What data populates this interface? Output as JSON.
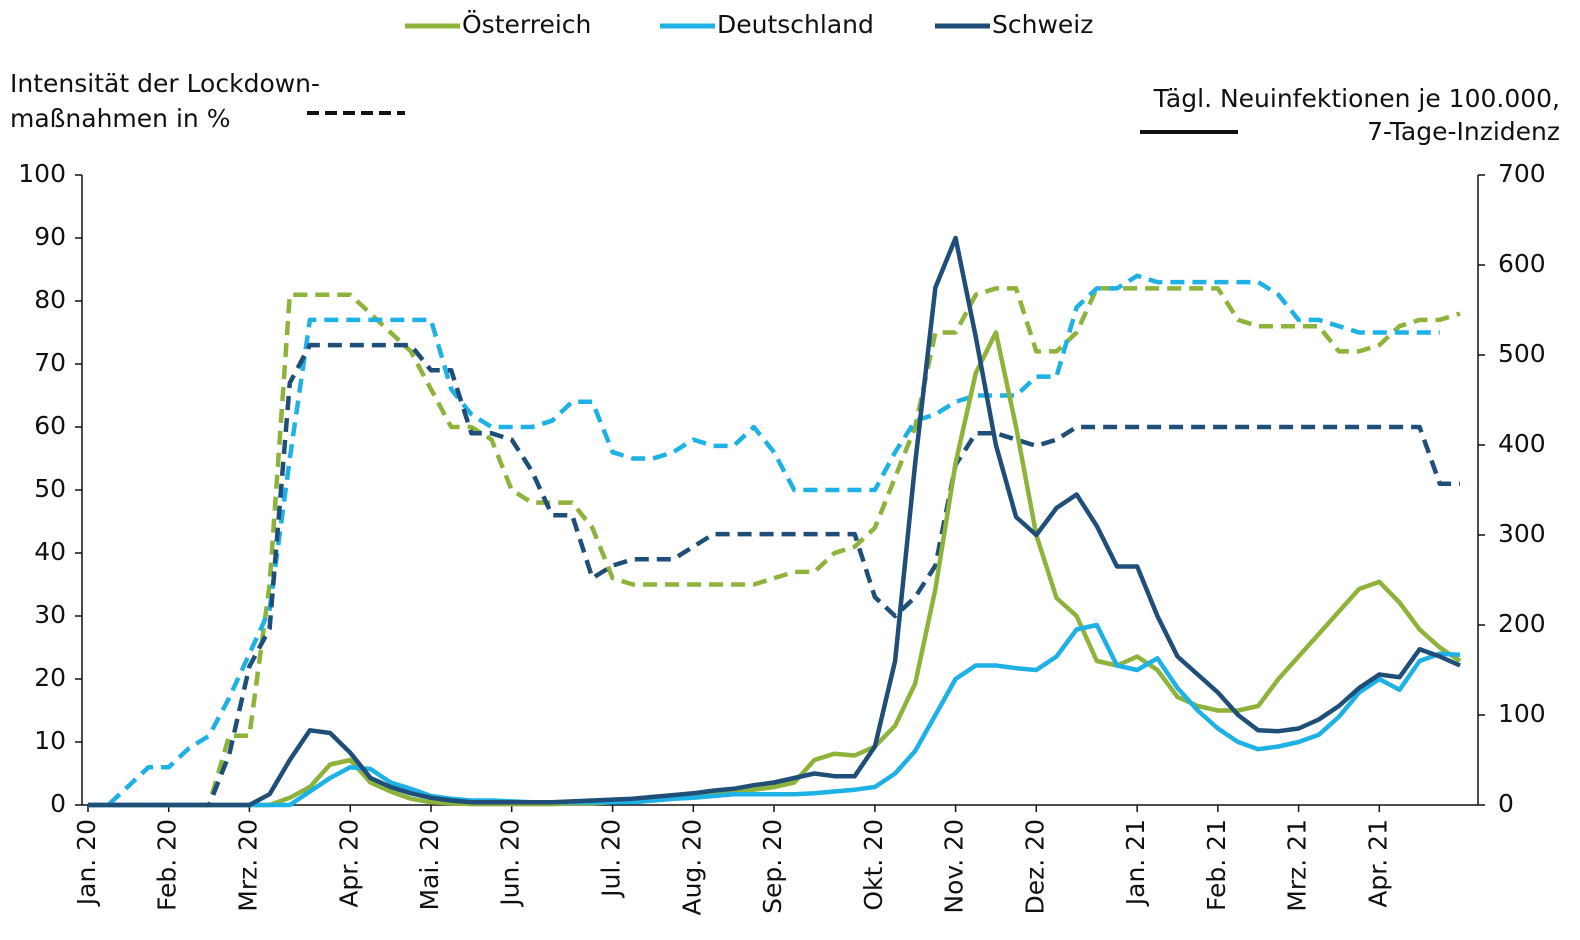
{
  "chart_data": {
    "type": "line",
    "y_label": [
      "Intensität der Lockdown-",
      "maßnahmen in %"
    ],
    "y2_label": [
      "Tägl. Neuinfektionen je 100.000,",
      "7-Tage-Inzidenz"
    ],
    "categories": [
      "Jan. 20",
      null,
      null,
      null,
      "Feb. 20",
      null,
      null,
      null,
      "Mrz. 20",
      null,
      null,
      null,
      null,
      "Apr. 20",
      null,
      null,
      null,
      "Mai. 20",
      null,
      null,
      null,
      "Jun. 20",
      null,
      null,
      null,
      null,
      "Jul. 20",
      null,
      null,
      null,
      "Aug. 20",
      null,
      null,
      null,
      "Sep. 20",
      null,
      null,
      null,
      null,
      "Okt. 20",
      null,
      null,
      null,
      "Nov. 20",
      null,
      null,
      null,
      "Dez. 20",
      null,
      null,
      null,
      null,
      "Jan. 21",
      null,
      null,
      null,
      "Feb. 21",
      null,
      null,
      null,
      "Mrz. 21",
      null,
      null,
      null,
      "Apr. 21",
      null,
      null,
      null,
      null
    ],
    "ylim": [
      0,
      100
    ],
    "yticks": [
      0,
      10,
      20,
      30,
      40,
      50,
      60,
      70,
      80,
      90,
      100
    ],
    "y2lim": [
      0,
      700
    ],
    "y2ticks": [
      0,
      100,
      200,
      300,
      400,
      500,
      600,
      700
    ],
    "series": [
      {
        "name": "Österreich",
        "color": "#8db33a",
        "axis": "y2",
        "values": [
          0,
          0,
          0,
          0,
          0,
          0,
          0,
          0,
          0,
          0,
          8,
          20,
          45,
          50,
          25,
          15,
          7,
          3,
          2,
          1,
          1,
          1,
          1,
          1,
          2,
          2,
          3,
          4,
          5,
          7,
          9,
          11,
          14,
          17,
          20,
          25,
          50,
          57,
          55,
          65,
          88,
          135,
          240,
          380,
          480,
          525,
          420,
          300,
          230,
          210,
          160,
          155,
          165,
          150,
          120,
          110,
          105,
          105,
          110,
          140,
          165,
          190,
          215,
          240,
          248,
          225,
          195,
          175,
          160
        ],
        "lockdown_values": [
          0,
          0,
          0,
          0,
          0,
          0,
          0,
          11,
          11,
          35,
          81,
          81,
          81,
          81,
          78,
          75,
          72,
          66,
          60,
          60,
          58,
          50,
          48,
          48,
          48,
          44,
          36,
          35,
          35,
          35,
          35,
          35,
          35,
          35,
          36,
          37,
          37,
          40,
          41,
          44,
          52,
          60,
          75,
          75,
          81,
          82,
          82,
          72,
          72,
          75,
          82,
          82,
          82,
          82,
          82,
          82,
          82,
          77,
          76,
          76,
          76,
          76,
          72,
          72,
          73,
          76,
          77,
          77,
          78
        ]
      },
      {
        "name": "Deutschland",
        "color": "#1eb1e6",
        "axis": "y2",
        "values": [
          0,
          0,
          0,
          0,
          0,
          0,
          0,
          0,
          0,
          0,
          0,
          15,
          30,
          42,
          40,
          25,
          18,
          10,
          7,
          5,
          5,
          4,
          3,
          3,
          3,
          3,
          3,
          3,
          5,
          7,
          8,
          10,
          12,
          12,
          12,
          12,
          13,
          15,
          17,
          20,
          35,
          60,
          100,
          140,
          155,
          155,
          152,
          150,
          165,
          195,
          200,
          155,
          150,
          163,
          130,
          105,
          85,
          70,
          62,
          65,
          70,
          78,
          98,
          125,
          140,
          128,
          160,
          168,
          167
        ],
        "lockdown_values": [
          0,
          0,
          3,
          6,
          6,
          9,
          11,
          17,
          24,
          31,
          55,
          77,
          77,
          77,
          77,
          77,
          77,
          77,
          66,
          62,
          60,
          60,
          60,
          61,
          64,
          64,
          56,
          55,
          55,
          56,
          58,
          57,
          57,
          60,
          56,
          50,
          50,
          50,
          50,
          50,
          56,
          61,
          62,
          64,
          65,
          65,
          65,
          68,
          68,
          79,
          82,
          82,
          84,
          83,
          83,
          83,
          83,
          83,
          83,
          81,
          77,
          77,
          76,
          75,
          75,
          75,
          75,
          75,
          null
        ]
      },
      {
        "name": "Schweiz",
        "color": "#1f4e79",
        "axis": "y2",
        "values": [
          0,
          0,
          0,
          0,
          0,
          0,
          0,
          0,
          0,
          12,
          50,
          83,
          80,
          58,
          30,
          20,
          13,
          8,
          5,
          3,
          3,
          3,
          3,
          3,
          4,
          5,
          6,
          7,
          9,
          11,
          13,
          16,
          18,
          22,
          25,
          30,
          35,
          32,
          32,
          65,
          160,
          380,
          575,
          630,
          520,
          400,
          320,
          300,
          330,
          345,
          310,
          265,
          265,
          210,
          165,
          145,
          125,
          100,
          83,
          82,
          85,
          95,
          110,
          130,
          145,
          142,
          173,
          165,
          155
        ],
        "lockdown_values": [
          0,
          0,
          0,
          0,
          0,
          0,
          0,
          8,
          22,
          28,
          67,
          73,
          73,
          73,
          73,
          73,
          73,
          69,
          69,
          59,
          59,
          58,
          53,
          46,
          46,
          36,
          38,
          39,
          39,
          39,
          41,
          43,
          43,
          43,
          43,
          43,
          43,
          43,
          43,
          33,
          30,
          33,
          38,
          54,
          59,
          59,
          58,
          57,
          58,
          60,
          60,
          60,
          60,
          60,
          60,
          60,
          60,
          60,
          60,
          60,
          60,
          60,
          60,
          60,
          60,
          60,
          60,
          51,
          51
        ]
      }
    ]
  }
}
